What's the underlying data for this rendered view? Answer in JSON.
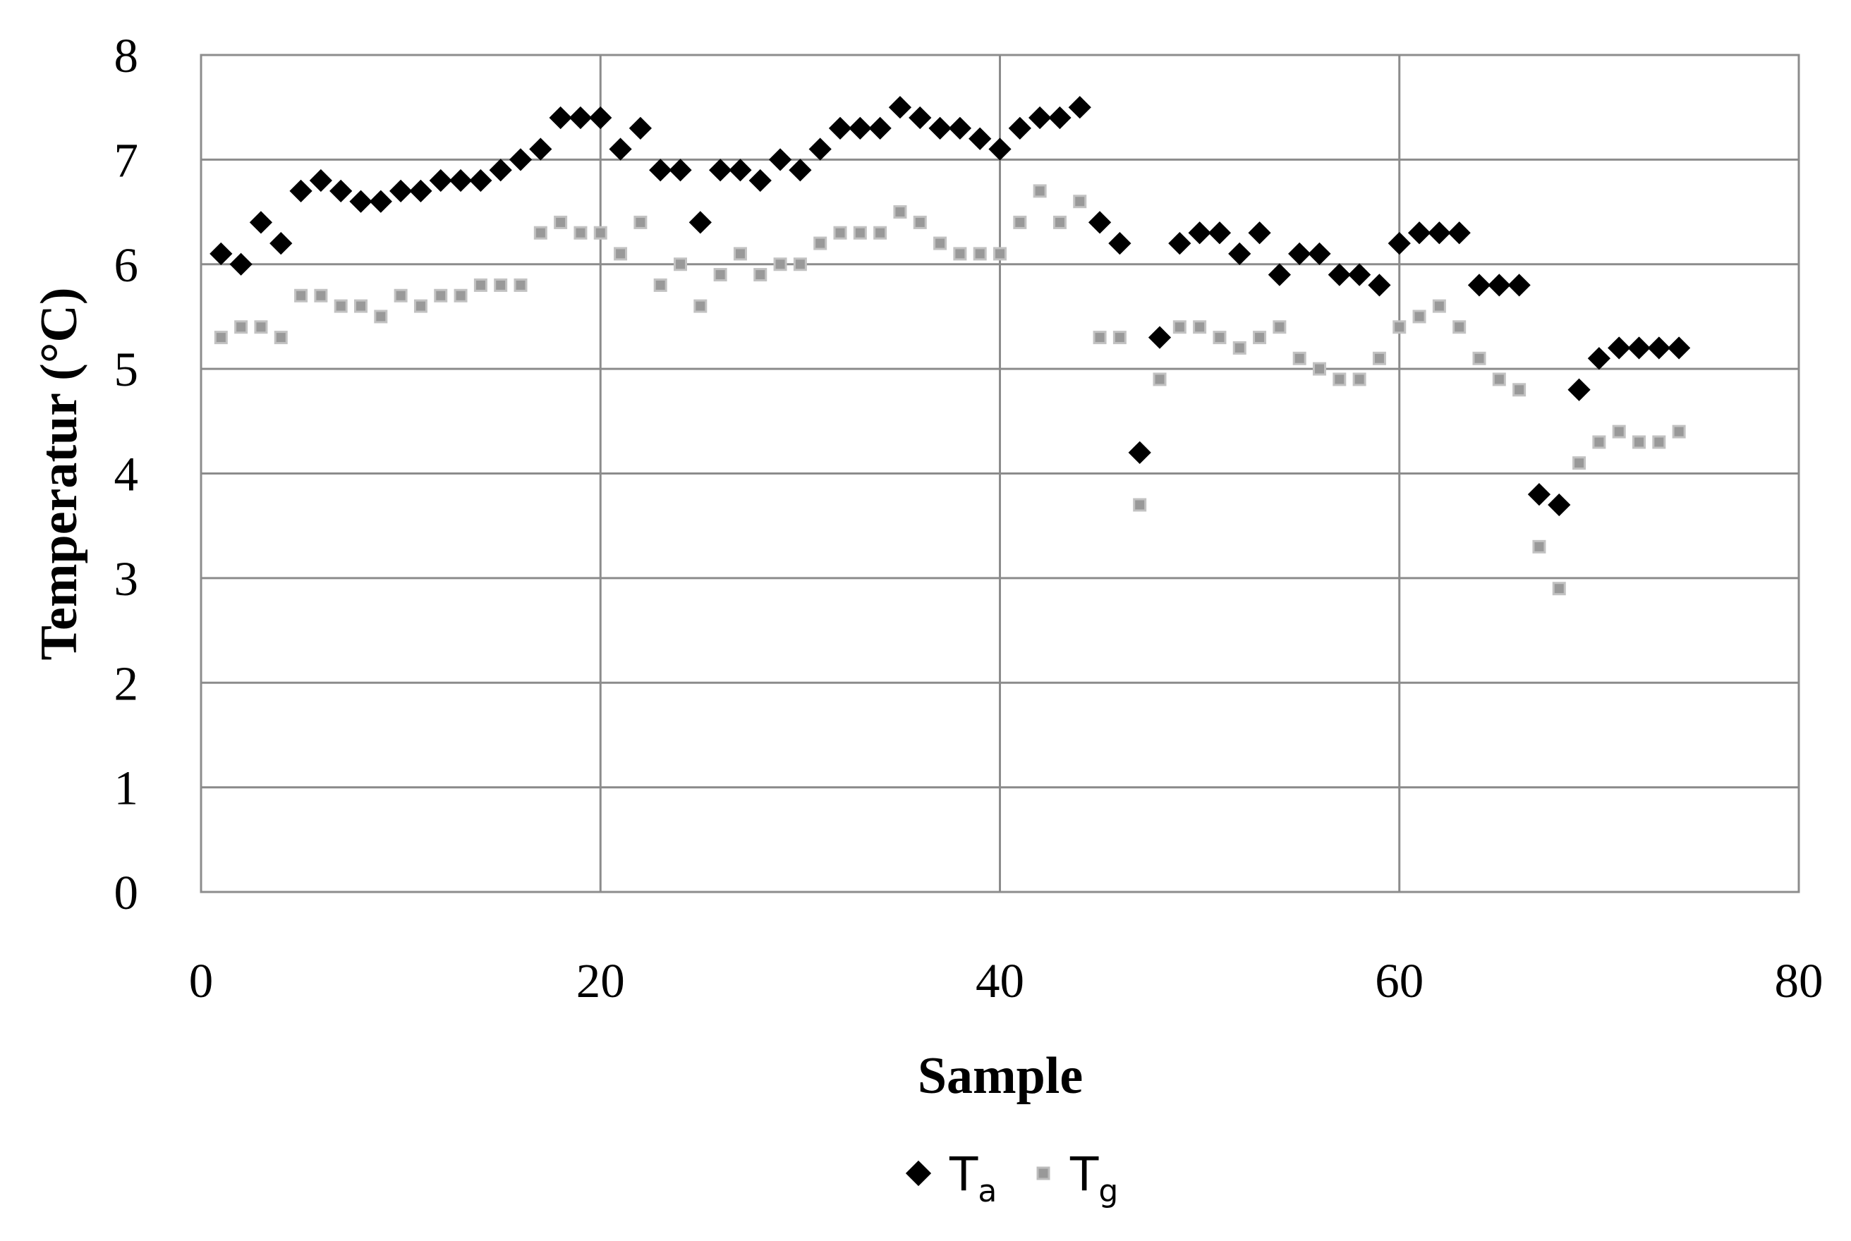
{
  "chart_data": {
    "type": "scatter",
    "xlabel": "Sample",
    "ylabel": "Temperatur (°C)",
    "xlim": [
      0,
      80
    ],
    "ylim": [
      0,
      8
    ],
    "x_ticks": [
      0,
      20,
      40,
      60,
      80
    ],
    "y_ticks": [
      0,
      1,
      2,
      3,
      4,
      5,
      6,
      7,
      8
    ],
    "grid": true,
    "legend_position": "bottom-center",
    "series": [
      {
        "name": "T_a",
        "legend_main": "T",
        "legend_sub": "a",
        "marker": "diamond",
        "color": "#000000",
        "x": [
          1,
          2,
          3,
          4,
          5,
          6,
          7,
          8,
          9,
          10,
          11,
          12,
          13,
          14,
          15,
          16,
          17,
          18,
          19,
          20,
          21,
          22,
          23,
          24,
          25,
          26,
          27,
          28,
          29,
          30,
          31,
          32,
          33,
          34,
          35,
          36,
          37,
          38,
          39,
          40,
          41,
          42,
          43,
          44,
          45,
          46,
          47,
          48,
          49,
          50,
          51,
          52,
          53,
          54,
          55,
          56,
          57,
          58,
          59,
          60,
          61,
          62,
          63,
          64,
          65,
          66,
          67,
          68,
          69,
          70,
          71,
          72,
          73,
          74
        ],
        "y": [
          6.1,
          6.0,
          6.4,
          6.2,
          6.7,
          6.8,
          6.7,
          6.6,
          6.6,
          6.7,
          6.7,
          6.8,
          6.8,
          6.8,
          6.9,
          7.0,
          7.1,
          7.4,
          7.4,
          7.4,
          7.1,
          7.3,
          6.9,
          6.9,
          6.4,
          6.9,
          6.9,
          6.8,
          7.0,
          6.9,
          7.1,
          7.3,
          7.3,
          7.3,
          7.5,
          7.4,
          7.3,
          7.3,
          7.2,
          7.1,
          7.3,
          7.4,
          7.4,
          7.5,
          6.4,
          6.2,
          4.2,
          5.3,
          6.2,
          6.3,
          6.3,
          6.1,
          6.3,
          5.9,
          6.1,
          6.1,
          5.9,
          5.9,
          5.8,
          6.2,
          6.3,
          6.3,
          6.3,
          5.8,
          5.8,
          5.8,
          3.8,
          3.7,
          4.8,
          5.1,
          5.2,
          5.2,
          5.2,
          5.2
        ]
      },
      {
        "name": "T_g",
        "legend_main": "T",
        "legend_sub": "g",
        "marker": "square",
        "color": "#999999",
        "x": [
          1,
          2,
          3,
          4,
          5,
          6,
          7,
          8,
          9,
          10,
          11,
          12,
          13,
          14,
          15,
          16,
          17,
          18,
          19,
          20,
          21,
          22,
          23,
          24,
          25,
          26,
          27,
          28,
          29,
          30,
          31,
          32,
          33,
          34,
          35,
          36,
          37,
          38,
          39,
          40,
          41,
          42,
          43,
          44,
          45,
          46,
          47,
          48,
          49,
          50,
          51,
          52,
          53,
          54,
          55,
          56,
          57,
          58,
          59,
          60,
          61,
          62,
          63,
          64,
          65,
          66,
          67,
          68,
          69,
          70,
          71,
          72,
          73,
          74
        ],
        "y": [
          5.3,
          5.4,
          5.4,
          5.3,
          5.7,
          5.7,
          5.6,
          5.6,
          5.5,
          5.7,
          5.6,
          5.7,
          5.7,
          5.8,
          5.8,
          5.8,
          6.3,
          6.4,
          6.3,
          6.3,
          6.1,
          6.4,
          5.8,
          6.0,
          5.6,
          5.9,
          6.1,
          5.9,
          6.0,
          6.0,
          6.2,
          6.3,
          6.3,
          6.3,
          6.5,
          6.4,
          6.2,
          6.1,
          6.1,
          6.1,
          6.4,
          6.7,
          6.4,
          6.6,
          5.3,
          5.3,
          3.7,
          4.9,
          5.4,
          5.4,
          5.3,
          5.2,
          5.3,
          5.4,
          5.1,
          5.0,
          4.9,
          4.9,
          5.1,
          5.4,
          5.5,
          5.6,
          5.4,
          5.1,
          4.9,
          4.8,
          3.3,
          2.9,
          4.1,
          4.3,
          4.4,
          4.3,
          4.3,
          4.4
        ]
      }
    ]
  }
}
